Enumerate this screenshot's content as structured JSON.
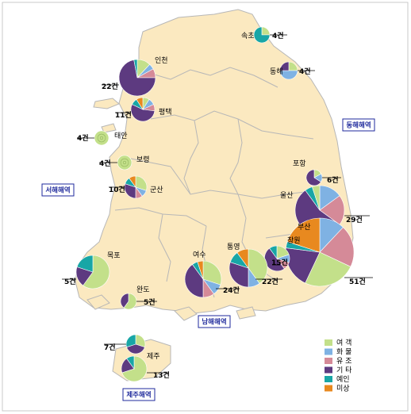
{
  "colors": {
    "여객": "#c3e08a",
    "화물": "#7fb2e3",
    "유조": "#d58a98",
    "기타": "#5d3a80",
    "예인": "#18a6a6",
    "미상": "#e8891f",
    "land": "#fbe9c0",
    "border": "#b7b7b7"
  },
  "legend": {
    "items": [
      {
        "key": "여객",
        "label": "여 객"
      },
      {
        "key": "화물",
        "label": "화 물"
      },
      {
        "key": "유조",
        "label": "유 조"
      },
      {
        "key": "기타",
        "label": "기 타"
      },
      {
        "key": "예인",
        "label": "예인"
      },
      {
        "key": "미상",
        "label": "미상"
      }
    ]
  },
  "seas": [
    {
      "id": "east",
      "label": "동해해역"
    },
    {
      "id": "west",
      "label": "서해해역"
    },
    {
      "id": "south",
      "label": "남해해역"
    },
    {
      "id": "jeju",
      "label": "제주해역"
    }
  ],
  "ports": [
    {
      "id": "sokcho",
      "name": "속초",
      "count": "4건",
      "slices": [
        [
          "여객",
          0.25
        ],
        [
          "예인",
          0.75
        ]
      ]
    },
    {
      "id": "donghae",
      "name": "동해",
      "count": "4건",
      "slices": [
        [
          "여객",
          0.25
        ],
        [
          "화물",
          0.5
        ],
        [
          "기타",
          0.25
        ]
      ]
    },
    {
      "id": "incheon",
      "name": "인천",
      "count": "22건",
      "slices": [
        [
          "여객",
          0.12
        ],
        [
          "화물",
          0.05
        ],
        [
          "유조",
          0.08
        ],
        [
          "기타",
          0.72
        ],
        [
          "예인",
          0.03
        ]
      ]
    },
    {
      "id": "pyeongtaek",
      "name": "평택",
      "count": "11건",
      "slices": [
        [
          "여객",
          0.09
        ],
        [
          "화물",
          0.09
        ],
        [
          "유조",
          0.09
        ],
        [
          "기타",
          0.55
        ],
        [
          "예인",
          0.09
        ],
        [
          "미상",
          0.09
        ]
      ]
    },
    {
      "id": "taean",
      "name": "태안",
      "count": "4건",
      "slices": [
        [
          "여객",
          1.0
        ]
      ]
    },
    {
      "id": "boryeong",
      "name": "보령",
      "count": "4건",
      "slices": [
        [
          "여객",
          1.0
        ]
      ]
    },
    {
      "id": "gunsan",
      "name": "군산",
      "count": "10건",
      "slices": [
        [
          "여객",
          0.3
        ],
        [
          "화물",
          0.1
        ],
        [
          "유조",
          0.1
        ],
        [
          "기타",
          0.3
        ],
        [
          "예인",
          0.1
        ],
        [
          "미상",
          0.1
        ]
      ]
    },
    {
      "id": "pohang",
      "name": "포항",
      "count": "6건",
      "slices": [
        [
          "여객",
          0.17
        ],
        [
          "화물",
          0.17
        ],
        [
          "기타",
          0.66
        ]
      ]
    },
    {
      "id": "ulsan",
      "name": "울산",
      "count": "29건",
      "slices": [
        [
          "화물",
          0.15
        ],
        [
          "유조",
          0.2
        ],
        [
          "기타",
          0.55
        ],
        [
          "예인",
          0.05
        ],
        [
          "여객",
          0.05
        ]
      ]
    },
    {
      "id": "busan",
      "name": "부산",
      "count": "51건",
      "slices": [
        [
          "화물",
          0.12
        ],
        [
          "유조",
          0.2
        ],
        [
          "여객",
          0.25
        ],
        [
          "기타",
          0.2
        ],
        [
          "예인",
          0.03
        ],
        [
          "미상",
          0.2
        ]
      ]
    },
    {
      "id": "changwon",
      "name": "창원",
      "count": "15건",
      "slices": [
        [
          "여객",
          0.2
        ],
        [
          "화물",
          0.1
        ],
        [
          "유조",
          0.1
        ],
        [
          "기타",
          0.5
        ],
        [
          "예인",
          0.1
        ]
      ]
    },
    {
      "id": "tongyeong",
      "name": "통영",
      "count": "22건",
      "slices": [
        [
          "여객",
          0.4
        ],
        [
          "화물",
          0.1
        ],
        [
          "기타",
          0.3
        ],
        [
          "예인",
          0.1
        ],
        [
          "미상",
          0.1
        ]
      ]
    },
    {
      "id": "yeosu",
      "name": "여수",
      "count": "24건",
      "slices": [
        [
          "여객",
          0.3
        ],
        [
          "화물",
          0.1
        ],
        [
          "유조",
          0.1
        ],
        [
          "기타",
          0.4
        ],
        [
          "예인",
          0.05
        ],
        [
          "미상",
          0.05
        ]
      ]
    },
    {
      "id": "mokpo",
      "name": "목포",
      "count": "5건",
      "slices": [
        [
          "여객",
          0.6
        ],
        [
          "기타",
          0.2
        ],
        [
          "예인",
          0.2
        ]
      ]
    },
    {
      "id": "wando",
      "name": "완도",
      "count": "5건",
      "slices": [
        [
          "여객",
          0.6
        ],
        [
          "기타",
          0.4
        ]
      ]
    },
    {
      "id": "jeju_n",
      "name": "",
      "count": "7건",
      "slices": [
        [
          "여객",
          0.3
        ],
        [
          "기타",
          0.4
        ],
        [
          "예인",
          0.3
        ]
      ]
    },
    {
      "id": "jeju",
      "name": "제주",
      "count": "13건",
      "slices": [
        [
          "여객",
          0.7
        ],
        [
          "기타",
          0.2
        ],
        [
          "예인",
          0.1
        ]
      ]
    }
  ]
}
